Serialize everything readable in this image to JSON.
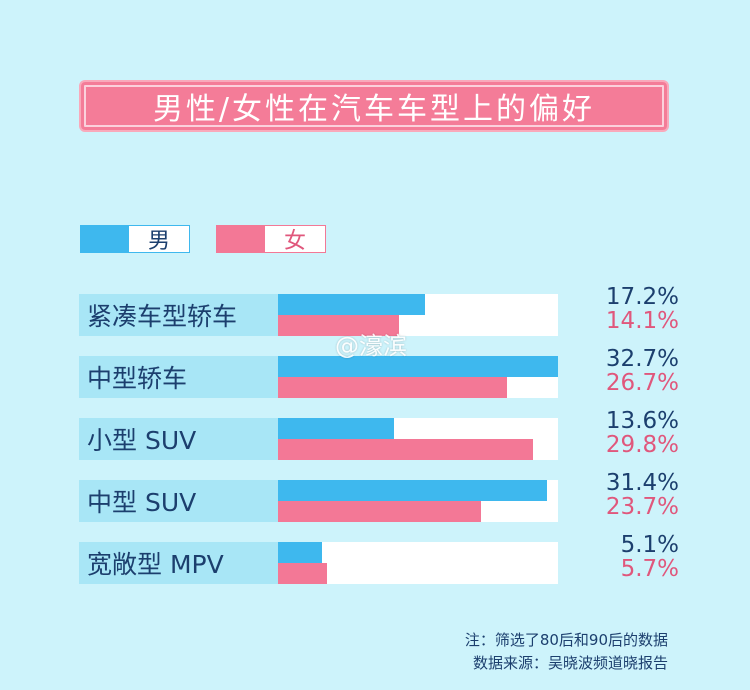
{
  "title": "男性/女性在汽车车型上的偏好",
  "legend": {
    "male": "男",
    "female": "女"
  },
  "colors": {
    "male": "#3eb8ee",
    "female": "#f37896",
    "background": "#cdf3fb",
    "title_bg": "#f47c98"
  },
  "watermark": "@濠滨",
  "chart_data": {
    "type": "bar",
    "orientation": "horizontal",
    "categories": [
      "紧凑车型轿车",
      "中型轿车",
      "小型 SUV",
      "中型 SUV",
      "宽敞型 MPV"
    ],
    "series": [
      {
        "name": "男",
        "values": [
          17.2,
          32.7,
          13.6,
          31.4,
          5.1
        ],
        "labels": [
          "17.2%",
          "32.7%",
          "13.6%",
          "31.4%",
          "5.1%"
        ]
      },
      {
        "name": "女",
        "values": [
          14.1,
          26.7,
          29.8,
          23.7,
          5.7
        ],
        "labels": [
          "14.1%",
          "26.7%",
          "29.8%",
          "23.7%",
          "5.7%"
        ]
      }
    ],
    "title": "男性/女性在汽车车型上的偏好",
    "unit": "%",
    "legend_position": "top-left"
  },
  "notes": {
    "line1": "注：筛选了80后和90后的数据",
    "line2": "数据来源：吴晓波频道晓报告"
  }
}
